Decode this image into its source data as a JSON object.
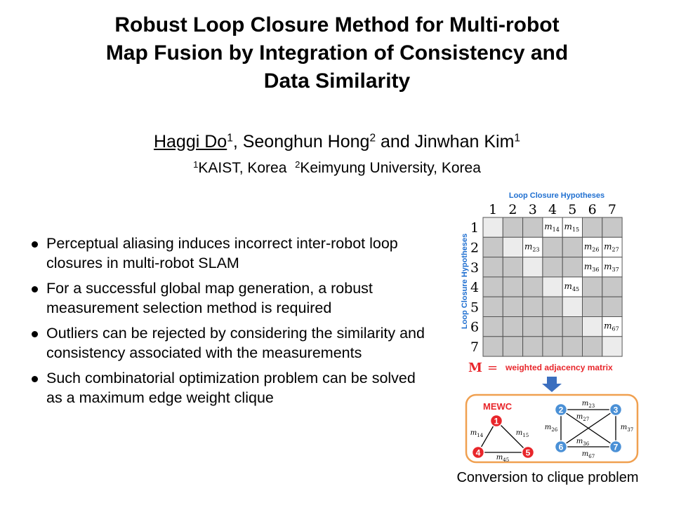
{
  "title": {
    "line1": "Robust Loop Closure Method for Multi-robot",
    "line2": "Map Fusion by Integration of Consistency and",
    "line3": "Data Similarity"
  },
  "authors": {
    "a1_name": "Haggi Do",
    "a1_sup": "1",
    "a2_name": ", Seonghun Hong",
    "a2_sup": "2",
    "and": " and Jinwhan Kim",
    "a3_sup": "1"
  },
  "affiliations": {
    "sup1": "1",
    "org1": "KAIST, Korea",
    "sup2": "2",
    "org2": "Keimyung University, Korea"
  },
  "bullets": [
    {
      "text": "Perceptual aliasing induces incorrect inter-robot loop closures in multi-robot SLAM"
    },
    {
      "text": "For a successful global map generation, a robust measurement selection method is required"
    },
    {
      "text": "Outliers can be rejected by considering the similarity and consistency associated with the measurements"
    },
    {
      "text": "Such combinatorial optimization problem can be solved as a maximum edge weight clique"
    }
  ],
  "matrix": {
    "top_label": "Loop Closure Hypotheses",
    "side_label": "Loop Closure Hypotheses",
    "col_labels": [
      "1",
      "2",
      "3",
      "4",
      "5",
      "6",
      "7"
    ],
    "row_labels": [
      "1",
      "2",
      "3",
      "4",
      "5",
      "6",
      "7"
    ],
    "entries": [
      {
        "row": 1,
        "col": 4,
        "m": "m",
        "sub": "14"
      },
      {
        "row": 1,
        "col": 5,
        "m": "m",
        "sub": "15"
      },
      {
        "row": 2,
        "col": 3,
        "m": "m",
        "sub": "23"
      },
      {
        "row": 2,
        "col": 6,
        "m": "m",
        "sub": "26"
      },
      {
        "row": 2,
        "col": 7,
        "m": "m",
        "sub": "27"
      },
      {
        "row": 3,
        "col": 6,
        "m": "m",
        "sub": "36"
      },
      {
        "row": 3,
        "col": 7,
        "m": "m",
        "sub": "37"
      },
      {
        "row": 4,
        "col": 5,
        "m": "m",
        "sub": "45"
      },
      {
        "row": 6,
        "col": 7,
        "m": "m",
        "sub": "67"
      }
    ],
    "eq_symbol": "M",
    "eq_sign": "=",
    "eq_label": "weighted adjacency matrix"
  },
  "graph": {
    "mewc_label": "MEWC",
    "left_nodes": [
      {
        "id": "1",
        "x": 707,
        "y": 600
      },
      {
        "id": "4",
        "x": 681,
        "y": 645
      },
      {
        "id": "5",
        "x": 752,
        "y": 645
      }
    ],
    "left_edges": [
      {
        "from": "1",
        "to": "4",
        "sub": "14"
      },
      {
        "from": "1",
        "to": "5",
        "sub": "15"
      },
      {
        "from": "4",
        "to": "5",
        "sub": "45"
      }
    ],
    "right_nodes": [
      {
        "id": "2",
        "x": 799,
        "y": 584
      },
      {
        "id": "3",
        "x": 877,
        "y": 584
      },
      {
        "id": "6",
        "x": 799,
        "y": 637
      },
      {
        "id": "7",
        "x": 877,
        "y": 637
      }
    ],
    "right_edges": [
      {
        "from": "2",
        "to": "3",
        "sub": "23"
      },
      {
        "from": "2",
        "to": "7",
        "sub": "27"
      },
      {
        "from": "2",
        "to": "6",
        "sub": "26"
      },
      {
        "from": "3",
        "to": "6",
        "sub": "36"
      },
      {
        "from": "3",
        "to": "7",
        "sub": "37"
      },
      {
        "from": "6",
        "to": "7",
        "sub": "67"
      }
    ],
    "colors": {
      "red_node": "#e8262b",
      "blue_node": "#4a90d6",
      "frame": "#f0a050",
      "arrow": "#3b6fbf",
      "label_blue": "#1f6fd0",
      "label_red": "#e8262b"
    }
  },
  "caption": "Conversion to clique problem"
}
